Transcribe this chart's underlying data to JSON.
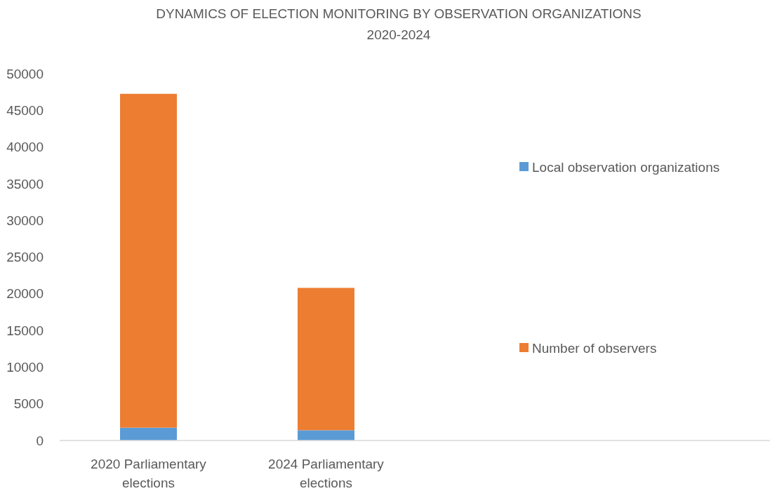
{
  "chart_data": {
    "type": "bar",
    "title": "DYNAMICS OF ELECTION MONITORING BY OBSERVATION ORGANIZATIONS",
    "subtitle": "2020-2024",
    "categories": [
      "2020 Parliamentary elections",
      "2024 Parliamentary elections",
      null,
      null
    ],
    "stacked": true,
    "series": [
      {
        "name": "Local observation organizations",
        "color": "#5b9bd5",
        "values": [
          1750,
          1400,
          null,
          null
        ]
      },
      {
        "name": "Number of observers",
        "color": "#ed7d31",
        "values": [
          45500,
          19400,
          null,
          null
        ]
      }
    ],
    "ylim": [
      0,
      50000
    ],
    "yticks": [
      0,
      5000,
      10000,
      15000,
      20000,
      25000,
      30000,
      35000,
      40000,
      45000,
      50000
    ],
    "grid": false,
    "legend": "right"
  }
}
